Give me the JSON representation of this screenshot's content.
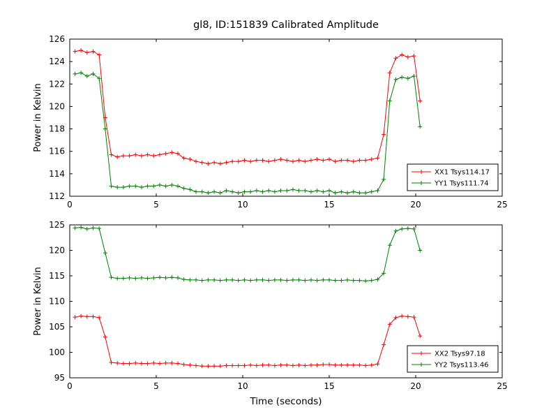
{
  "figure": {
    "title": "gl8, ID:151839 Calibrated Amplitude",
    "background": "#ffffff",
    "text_color": "#000000",
    "axis_color": "#000000"
  },
  "chart_data": [
    {
      "type": "line",
      "name": "top-subplot",
      "title": "",
      "xlabel": "",
      "ylabel": "Power in Kelvin",
      "xlim": [
        0,
        25
      ],
      "ylim": [
        112,
        126
      ],
      "xticks": [
        0,
        5,
        10,
        15,
        20,
        25
      ],
      "yticks": [
        112,
        114,
        116,
        118,
        120,
        122,
        124,
        126
      ],
      "grid": false,
      "legend_position": "lower right",
      "x": [
        0.3,
        0.65,
        1.0,
        1.35,
        1.7,
        2.05,
        2.4,
        2.75,
        3.1,
        3.45,
        3.8,
        4.15,
        4.5,
        4.85,
        5.2,
        5.55,
        5.9,
        6.25,
        6.6,
        6.95,
        7.3,
        7.65,
        8.0,
        8.35,
        8.7,
        9.05,
        9.4,
        9.75,
        10.1,
        10.45,
        10.8,
        11.15,
        11.5,
        11.85,
        12.2,
        12.55,
        12.9,
        13.25,
        13.6,
        13.95,
        14.3,
        14.65,
        15.0,
        15.35,
        15.7,
        16.05,
        16.4,
        16.75,
        17.1,
        17.45,
        17.8,
        18.15,
        18.5,
        18.85,
        19.2,
        19.55,
        19.9,
        20.25
      ],
      "series": [
        {
          "name": "XX1 Tsys114.17",
          "color": "#ff0000",
          "marker": "plus",
          "values": [
            124.9,
            125.0,
            124.8,
            124.9,
            124.6,
            119.0,
            115.7,
            115.5,
            115.6,
            115.6,
            115.7,
            115.6,
            115.7,
            115.6,
            115.7,
            115.8,
            115.9,
            115.8,
            115.4,
            115.3,
            115.1,
            115.0,
            114.9,
            115.0,
            114.9,
            115.0,
            115.1,
            115.1,
            115.2,
            115.1,
            115.2,
            115.2,
            115.1,
            115.2,
            115.3,
            115.2,
            115.1,
            115.2,
            115.1,
            115.2,
            115.3,
            115.2,
            115.3,
            115.1,
            115.2,
            115.2,
            115.1,
            115.2,
            115.2,
            115.3,
            115.4,
            117.5,
            123.0,
            124.3,
            124.6,
            124.4,
            124.5,
            120.5
          ]
        },
        {
          "name": "YY1 Tsys111.74",
          "color": "#008000",
          "marker": "plus",
          "values": [
            122.9,
            123.0,
            122.7,
            122.9,
            122.5,
            118.0,
            112.9,
            112.8,
            112.8,
            112.9,
            112.9,
            112.8,
            112.9,
            112.9,
            113.0,
            112.9,
            113.0,
            112.9,
            112.7,
            112.6,
            112.4,
            112.4,
            112.3,
            112.4,
            112.3,
            112.5,
            112.4,
            112.3,
            112.4,
            112.4,
            112.5,
            112.4,
            112.5,
            112.4,
            112.5,
            112.5,
            112.6,
            112.5,
            112.5,
            112.4,
            112.5,
            112.4,
            112.5,
            112.3,
            112.4,
            112.3,
            112.4,
            112.3,
            112.3,
            112.4,
            112.5,
            113.5,
            120.5,
            122.4,
            122.6,
            122.5,
            122.7,
            118.2
          ]
        }
      ]
    },
    {
      "type": "line",
      "name": "bottom-subplot",
      "title": "",
      "xlabel": "Time (seconds)",
      "ylabel": "Power in Kelvin",
      "xlim": [
        0,
        25
      ],
      "ylim": [
        95,
        125
      ],
      "xticks": [
        0,
        5,
        10,
        15,
        20,
        25
      ],
      "yticks": [
        95,
        100,
        105,
        110,
        115,
        120,
        125
      ],
      "grid": false,
      "legend_position": "lower right",
      "x": [
        0.3,
        0.65,
        1.0,
        1.35,
        1.7,
        2.05,
        2.4,
        2.75,
        3.1,
        3.45,
        3.8,
        4.15,
        4.5,
        4.85,
        5.2,
        5.55,
        5.9,
        6.25,
        6.6,
        6.95,
        7.3,
        7.65,
        8.0,
        8.35,
        8.7,
        9.05,
        9.4,
        9.75,
        10.1,
        10.45,
        10.8,
        11.15,
        11.5,
        11.85,
        12.2,
        12.55,
        12.9,
        13.25,
        13.6,
        13.95,
        14.3,
        14.65,
        15.0,
        15.35,
        15.7,
        16.05,
        16.4,
        16.75,
        17.1,
        17.45,
        17.8,
        18.15,
        18.5,
        18.85,
        19.2,
        19.55,
        19.9,
        20.25
      ],
      "series": [
        {
          "name": "XX2 Tsys97.18",
          "color": "#ff0000",
          "marker": "plus",
          "values": [
            106.9,
            107.1,
            107.0,
            107.0,
            106.8,
            103.0,
            98.0,
            97.9,
            97.8,
            97.8,
            97.9,
            97.8,
            97.8,
            97.9,
            97.8,
            97.9,
            97.9,
            97.8,
            97.6,
            97.5,
            97.4,
            97.3,
            97.3,
            97.3,
            97.3,
            97.4,
            97.4,
            97.4,
            97.4,
            97.5,
            97.4,
            97.5,
            97.5,
            97.4,
            97.5,
            97.5,
            97.4,
            97.5,
            97.4,
            97.5,
            97.5,
            97.6,
            97.6,
            97.5,
            97.5,
            97.5,
            97.5,
            97.5,
            97.4,
            97.5,
            97.7,
            101.5,
            105.5,
            106.8,
            107.1,
            107.0,
            106.9,
            103.2
          ]
        },
        {
          "name": "YY2 Tsys113.46",
          "color": "#008000",
          "marker": "plus",
          "values": [
            124.4,
            124.5,
            124.2,
            124.4,
            124.3,
            119.5,
            114.7,
            114.5,
            114.5,
            114.6,
            114.5,
            114.6,
            114.5,
            114.6,
            114.7,
            114.6,
            114.7,
            114.6,
            114.3,
            114.2,
            114.2,
            114.1,
            114.2,
            114.2,
            114.1,
            114.2,
            114.2,
            114.1,
            114.2,
            114.1,
            114.2,
            114.2,
            114.1,
            114.2,
            114.2,
            114.1,
            114.2,
            114.2,
            114.1,
            114.2,
            114.1,
            114.2,
            114.2,
            114.1,
            114.1,
            114.2,
            114.1,
            114.1,
            114.0,
            114.1,
            114.3,
            115.5,
            121.0,
            123.8,
            124.2,
            124.3,
            124.2,
            120.0
          ]
        }
      ]
    }
  ]
}
